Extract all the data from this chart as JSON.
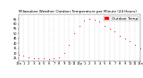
{
  "title": "Milwaukee Weather Outdoor Temperature per Minute (24 Hours)",
  "background_color": "#ffffff",
  "line_color": "#ff0000",
  "marker": ".",
  "markersize": 1.2,
  "ylim": [
    22,
    70
  ],
  "yticks": [
    25,
    30,
    35,
    40,
    45,
    50,
    55,
    60,
    65
  ],
  "ytick_labels": [
    "25",
    "30",
    "35",
    "40",
    "45",
    "50",
    "55",
    "60",
    "65"
  ],
  "grid_color": "#aaaaaa",
  "legend_label": "Outdoor Temp",
  "legend_color": "#ff0000",
  "x_points": [
    0,
    60,
    120,
    180,
    240,
    300,
    360,
    420,
    480,
    540,
    600,
    660,
    720,
    780,
    840,
    900,
    960,
    1020,
    1080,
    1140,
    1200,
    1260,
    1320,
    1380,
    1440
  ],
  "y_points": [
    28,
    27,
    26,
    25,
    25,
    25,
    24,
    25,
    26,
    30,
    38,
    50,
    58,
    63,
    65,
    64,
    62,
    58,
    55,
    52,
    48,
    45,
    42,
    38,
    35
  ],
  "xtick_positions": [
    0,
    60,
    120,
    180,
    240,
    300,
    360,
    420,
    480,
    540,
    600,
    660,
    720,
    780,
    840,
    900,
    960,
    1020,
    1080,
    1140,
    1200,
    1260,
    1320,
    1380,
    1440
  ],
  "xtick_labels": [
    "12a",
    "1",
    "2",
    "3",
    "4",
    "5",
    "6",
    "7",
    "8",
    "9",
    "10",
    "11",
    "12p",
    "1",
    "2",
    "3",
    "4",
    "5",
    "6",
    "7",
    "8",
    "9",
    "10",
    "11",
    "12a"
  ],
  "title_fontsize": 3.0,
  "tick_fontsize": 2.5,
  "legend_fontsize": 3.0
}
